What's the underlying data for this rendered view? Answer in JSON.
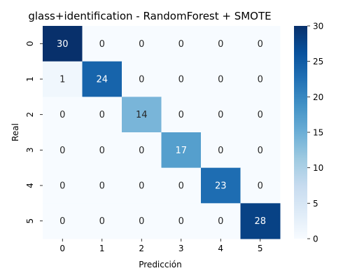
{
  "chart_data": {
    "type": "heatmap",
    "title": "glass+identification - RandomForest + SMOTE",
    "xlabel": "Predicción",
    "ylabel": "Real",
    "x_categories": [
      "0",
      "1",
      "2",
      "3",
      "4",
      "5"
    ],
    "y_categories": [
      "0",
      "1",
      "2",
      "3",
      "4",
      "5"
    ],
    "matrix": [
      [
        30,
        0,
        0,
        0,
        0,
        0
      ],
      [
        1,
        24,
        0,
        0,
        0,
        0
      ],
      [
        0,
        0,
        14,
        0,
        0,
        0
      ],
      [
        0,
        0,
        0,
        17,
        0,
        0
      ],
      [
        0,
        0,
        0,
        0,
        23,
        0
      ],
      [
        0,
        0,
        0,
        0,
        0,
        28
      ]
    ],
    "colorbar": {
      "min": 0,
      "max": 30,
      "ticks": [
        "0",
        "5",
        "10",
        "15",
        "20",
        "25",
        "30"
      ],
      "colormap": "Blues",
      "low_color": "#f7fbff",
      "high_color": "#08306b"
    },
    "text_colors": {
      "light": "#ffffff",
      "dark": "#262626"
    }
  }
}
